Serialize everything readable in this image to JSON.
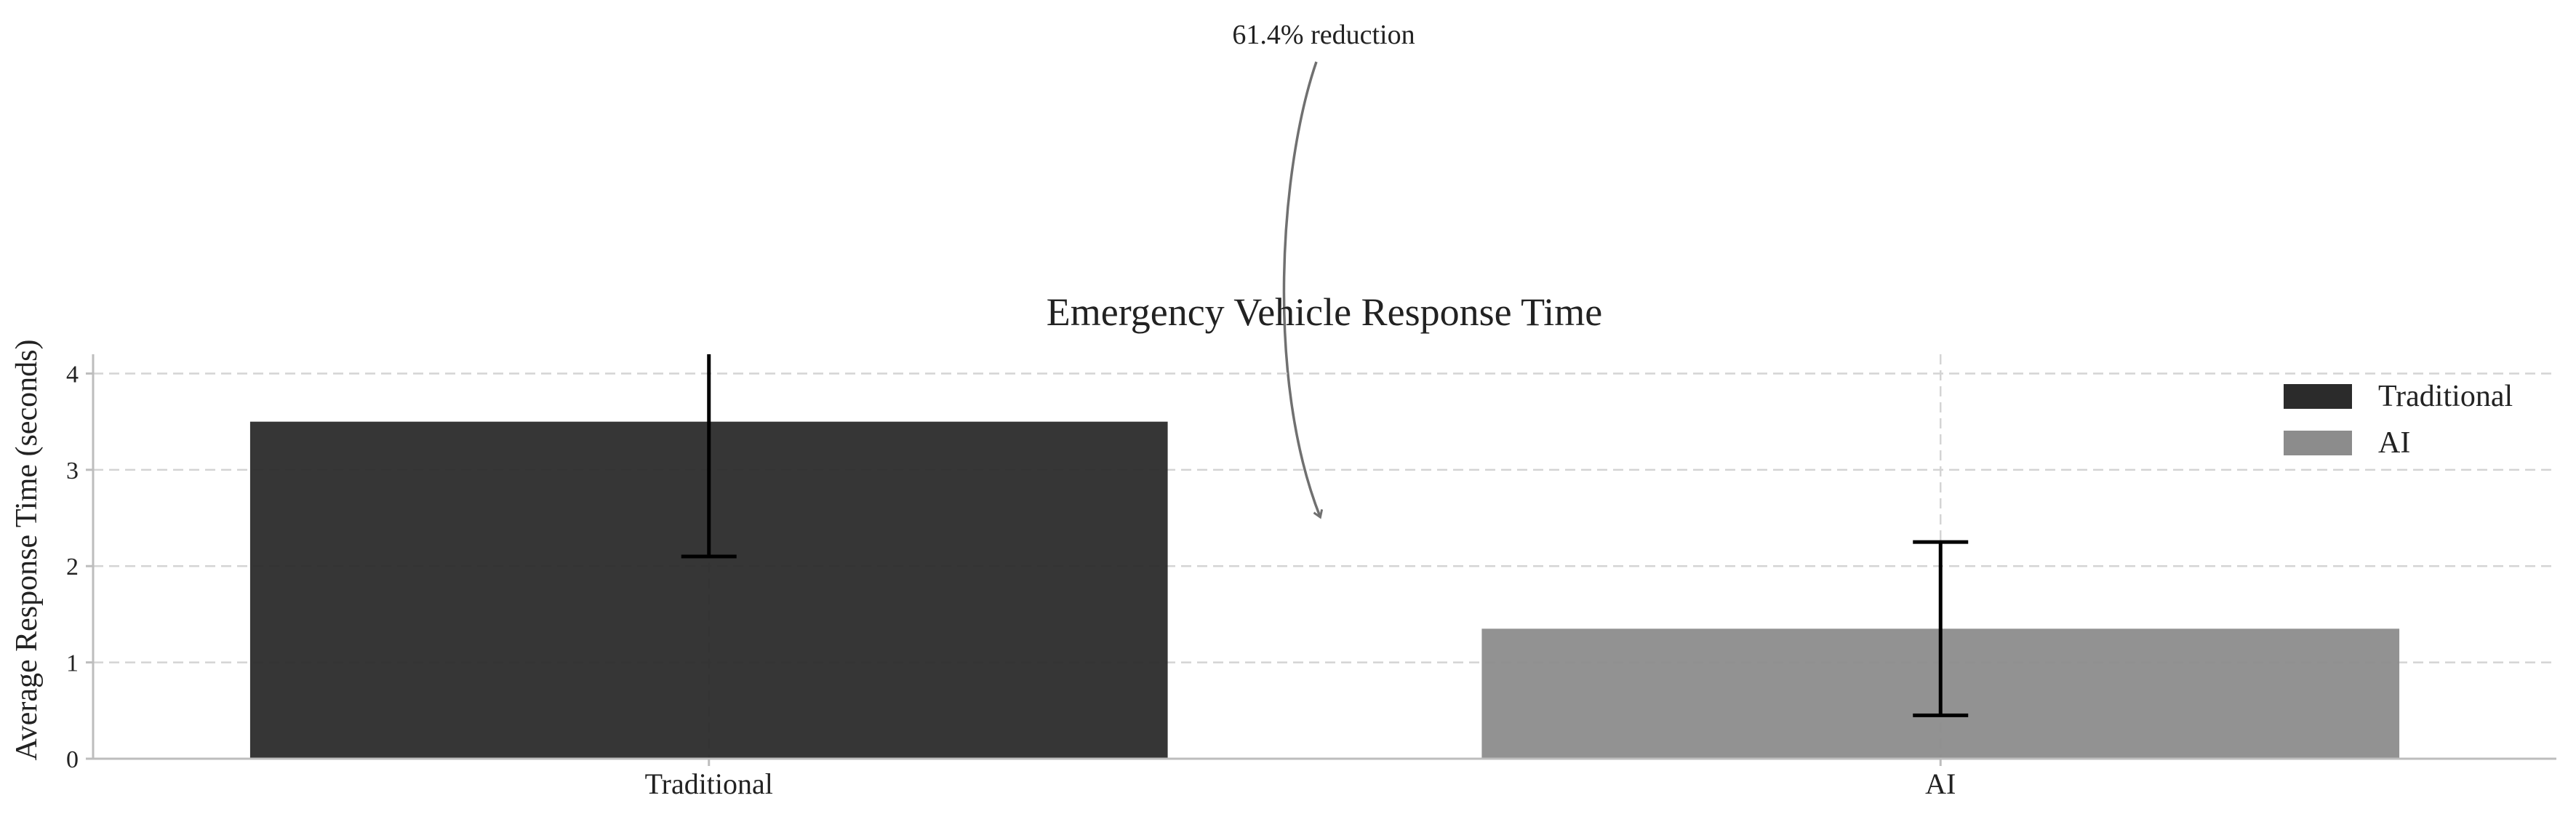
{
  "chart_data": {
    "type": "bar",
    "title": "Emergency Vehicle Response Time",
    "xlabel": "",
    "ylabel": "Average Response Time (seconds)",
    "categories": [
      "Traditional",
      "AI"
    ],
    "values": [
      3.5,
      1.35
    ],
    "errors": [
      1.4,
      0.9
    ],
    "ylim": [
      0,
      4.2
    ],
    "yticks": [
      "0",
      "1",
      "2",
      "3",
      "4"
    ],
    "bar_colors": [
      "#2b2b2b",
      "#8c8c8c"
    ],
    "legend": {
      "placement": "top-right",
      "entries": [
        {
          "label": "Traditional",
          "color": "#2b2b2b"
        },
        {
          "label": "AI",
          "color": "#8c8c8c"
        }
      ]
    },
    "annotation": {
      "text": "61.4% reduction",
      "color": "#707070"
    },
    "grid": true
  }
}
